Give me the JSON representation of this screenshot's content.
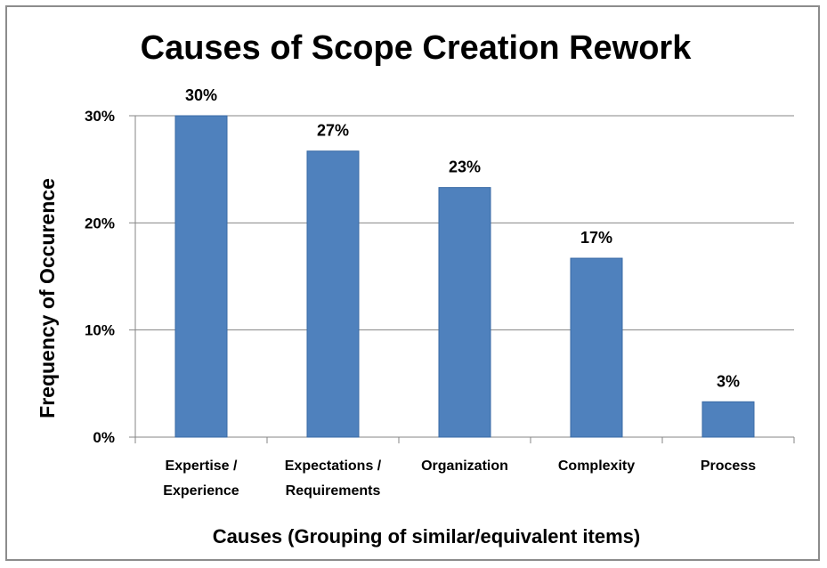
{
  "chart_data": {
    "type": "bar",
    "title": "Causes of Scope Creation Rework",
    "xlabel": "Causes  (Grouping of similar/equivalent items)",
    "ylabel": "Frequency of Occurence",
    "categories": [
      [
        "Expertise /",
        "Experience"
      ],
      [
        "Expectations /",
        "Requirements"
      ],
      [
        "Organization"
      ],
      [
        "Complexity"
      ],
      [
        "Process"
      ]
    ],
    "values": [
      30,
      26.7,
      23.3,
      16.7,
      3.3
    ],
    "data_labels": [
      "30%",
      "27%",
      "23%",
      "17%",
      "3%"
    ],
    "ylim": [
      0,
      30
    ],
    "yticks": [
      {
        "value": 0,
        "label": "0%"
      },
      {
        "value": 10,
        "label": "10%"
      },
      {
        "value": 20,
        "label": "20%"
      },
      {
        "value": 30,
        "label": "30%"
      }
    ],
    "grid": true,
    "legend": "none",
    "colors": {
      "bar": "#4f81bd",
      "bar_edge": "#3a6aa5",
      "grid": "#868686",
      "axis": "#868686"
    }
  }
}
